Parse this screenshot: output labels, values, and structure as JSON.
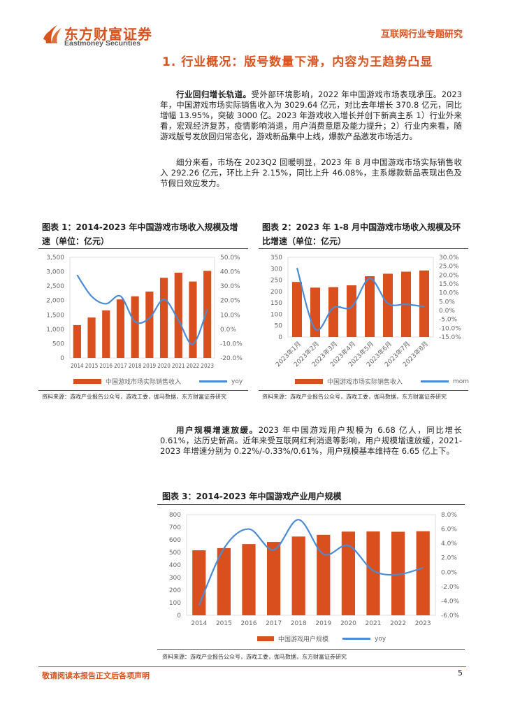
{
  "header": {
    "logo_cn": "东方财富证券",
    "logo_en": "Eastmoney Securities",
    "report_type": "互联网行业专题研究"
  },
  "section_title": "1. 行业概况：版号数量下滑，内容为王趋势凸显",
  "paragraphs": [
    {
      "lead": "行业回归增长轨道。",
      "text": "受外部环境影响，2022 年中国游戏市场表现承压。2023 年，中国游戏市场实际销售收入为 3029.64 亿元，对比去年增长 370.8 亿元，同比增幅 13.95%，突破 3000 亿。2023 年游戏收入增长并创下新高主系 1）行业外来看，宏观经济复苏，疫情影响消退，用户消费意愿及能力提升；2）行业内来看，随游戏版号发放回归常态化，游戏新品集中上线，爆款产品激发市场活力。"
    },
    {
      "lead": "",
      "text": "细分来看，市场在 2023Q2 回暖明显，2023 年 8 月中国游戏市场实际销售收入 292.26 亿元，环比上升 2.15%，同比上升 46.08%，主系爆款新品表现出色及节假日效应发力。"
    },
    {
      "lead": "用户规模增速放缓。",
      "text": "2023 年中国游戏用户规模为 6.68 亿人，同比增长 0.61%，达历史新高。近年来受互联网红利消退等影响，用户规模增速放缓，2021-2023 年增速分别为 0.22%/-0.33%/0.61%，用户规模基本维持在 6.65 亿上下。"
    }
  ],
  "colors": {
    "accent": "#d9531e",
    "bar": "#d9501e",
    "line": "#4a8bd6"
  },
  "chart_data": [
    {
      "type": "bar",
      "title": "图表 1：2014-2023 年中国游戏市场收入规模及增速（单位：亿元）",
      "categories": [
        "2014",
        "2015",
        "2016",
        "2017",
        "2018",
        "2019",
        "2020",
        "2021",
        "2022",
        "2023"
      ],
      "series": [
        {
          "name": "中国游戏市场实际销售收入",
          "type": "bar",
          "axis": "left",
          "values": [
            1144.8,
            1407.0,
            1655.7,
            2036.1,
            2144.4,
            2308.8,
            2786.9,
            2965.1,
            2658.8,
            3029.6
          ]
        },
        {
          "name": "yoy",
          "type": "line",
          "axis": "right",
          "values": [
            37.7,
            22.9,
            17.7,
            23.0,
            5.3,
            7.7,
            20.7,
            6.4,
            -10.3,
            13.95
          ]
        }
      ],
      "yticks": [
        "0",
        "500",
        "1,000",
        "1,500",
        "2,000",
        "2,500",
        "3,000",
        "3,500"
      ],
      "ylim": [
        0,
        3500
      ],
      "y2ticks": [
        "-20.0%",
        "-10.0%",
        "0.0%",
        "10.0%",
        "20.0%",
        "30.0%",
        "40.0%",
        "50.0%"
      ],
      "y2lim": [
        -20,
        50
      ],
      "source": "资料来源：游戏产业报告公众号，游戏工委，伽马数据，东方财富证券研究",
      "legend": "bottom"
    },
    {
      "type": "bar",
      "title": "图表 2：2023 年 1-8 月中国游戏市场收入规模及环比增速（单位：亿元）",
      "categories": [
        "2023年1月",
        "2023年2月",
        "2023年3月",
        "2023年4月",
        "2023年5月",
        "2023年6月",
        "2023年7月",
        "2023年8月"
      ],
      "series": [
        {
          "name": "中国游戏市场实际销售收入",
          "type": "bar",
          "axis": "left",
          "values": [
            242,
            217,
            219,
            227,
            267,
            278,
            287,
            292.26
          ]
        },
        {
          "name": "mom",
          "type": "line",
          "axis": "right",
          "values": [
            24.0,
            -10.5,
            1.5,
            2.0,
            18.0,
            4.0,
            3.5,
            2.15
          ]
        }
      ],
      "yticks": [
        "0",
        "50",
        "100",
        "150",
        "200",
        "250",
        "300",
        "350"
      ],
      "ylim": [
        0,
        350
      ],
      "y2ticks": [
        "-15.0%",
        "-10.0%",
        "-5.0%",
        "0.0%",
        "5.0%",
        "10.0%",
        "15.0%",
        "20.0%",
        "25.0%",
        "30.0%"
      ],
      "y2lim": [
        -15,
        30
      ],
      "source": "资料来源：游戏产业报告公众号，游戏工委，伽马数据，东方财富证券研究",
      "legend": "bottom"
    },
    {
      "type": "bar",
      "title": "图表 3：2014-2023 年中国游戏产业用户规模",
      "categories": [
        "2014",
        "2015",
        "2016",
        "2017",
        "2018",
        "2019",
        "2020",
        "2021",
        "2022",
        "2023"
      ],
      "series": [
        {
          "name": "中国游戏用户规模",
          "type": "bar",
          "axis": "left",
          "values": [
            517,
            534,
            566,
            583,
            626,
            640,
            665,
            666,
            664,
            668
          ]
        },
        {
          "name": "yoy",
          "type": "line",
          "axis": "right",
          "values": [
            -4.6,
            3.3,
            6.0,
            3.1,
            7.3,
            2.5,
            3.7,
            0.22,
            -0.33,
            0.61
          ]
        }
      ],
      "yticks": [
        "0",
        "100",
        "200",
        "300",
        "400",
        "500",
        "600",
        "700",
        "800"
      ],
      "ylim": [
        0,
        800
      ],
      "y2ticks": [
        "-6.0%",
        "-4.0%",
        "-2.0%",
        "0.0%",
        "2.0%",
        "4.0%",
        "6.0%",
        "8.0%"
      ],
      "y2lim": [
        -6,
        8
      ],
      "source": "资料来源：游戏产业报告公众号，游戏工委，伽马数据，东方财富证券研究",
      "legend": "bottom"
    }
  ],
  "footer": {
    "disclaimer": "敬请阅读本报告正文后各项声明",
    "page": "5"
  }
}
